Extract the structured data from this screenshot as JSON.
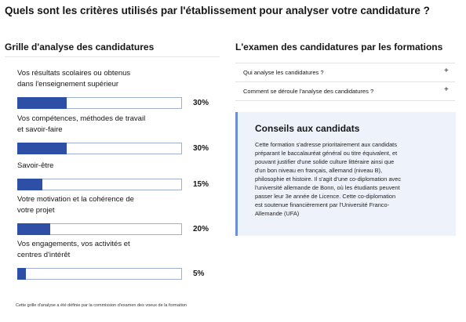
{
  "page_title": "Quels sont les critères utilisés par l'établissement pour analyser votre candidature ?",
  "grille": {
    "title": "Grille d'analyse des candidatures",
    "labels": [
      [
        "Vos résultats scolaires ou obtenus",
        "dans l'enseignement supérieur"
      ],
      [
        "Vos compétences, méthodes de travail",
        "et savoir-faire"
      ],
      [
        "Savoir-être"
      ],
      [
        "Votre motivation et la cohérence de",
        "votre projet"
      ],
      [
        "Vos engagements, vos activités et",
        "centres d'intérêt"
      ]
    ],
    "values": [
      30,
      30,
      15,
      20,
      5
    ],
    "value_labels": [
      "30%",
      "30%",
      "15%",
      "20%",
      "5%"
    ],
    "xlim": [
      0,
      100
    ],
    "color": "#2d4fa6",
    "footnote": "Cette grille d'analyse a été définie par la commission d'examen des voeux de la formation"
  },
  "examen": {
    "title": "L'examen des candidatures par les formations",
    "items": [
      "Qui analyse les candidatures ?",
      "Comment se déroule l'analyse des candidatures ?"
    ],
    "toggle": "+"
  },
  "conseils": {
    "title": "Conseils aux candidats",
    "lines": [
      "Cette formation s'adresse prioritairement aux candidats",
      "préparant le baccalauréat général ou titre équivalent, et",
      "pouvant justifier d'une solide culture littéraire ainsi que",
      "d'un bon niveau en français, allemand (niveau B),",
      "philosophie et histoire. Il s'agit d'une co-diplomation avec",
      "l'université allemande de Bonn, où les étudiants peuvent",
      "passer leur 3e année de Licence. Cette co-diplomation",
      "est soutenue financièrement par l'Université Franco-",
      "Allemande (UFA)"
    ]
  }
}
